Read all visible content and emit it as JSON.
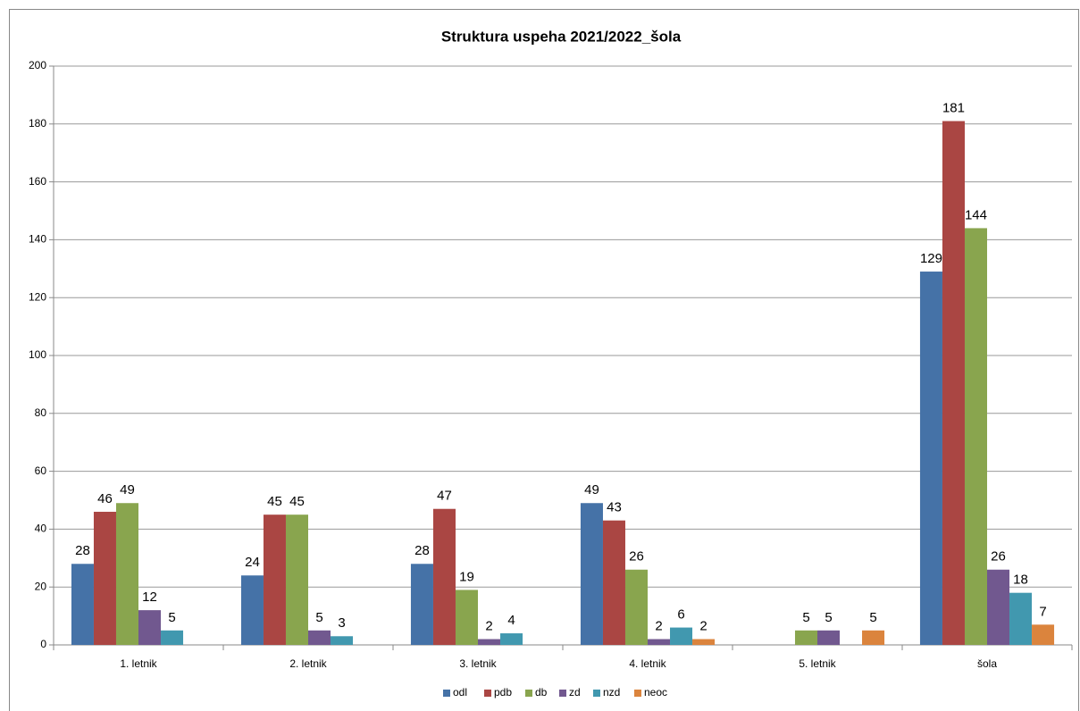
{
  "chart_data": {
    "type": "bar",
    "title": "Struktura uspeha 2021/2022_šola",
    "categories": [
      "1. letnik",
      "2. letnik",
      "3. letnik",
      "4. letnik",
      "5. letnik",
      "šola"
    ],
    "series": [
      {
        "name": "odl",
        "color": "#4572a7",
        "values": [
          28,
          24,
          28,
          49,
          null,
          129
        ]
      },
      {
        "name": "pdb",
        "color": "#aa4643",
        "values": [
          46,
          45,
          47,
          43,
          null,
          181
        ]
      },
      {
        "name": "db",
        "color": "#89a54e",
        "values": [
          49,
          45,
          19,
          26,
          5,
          144
        ]
      },
      {
        "name": "zd",
        "color": "#71588f",
        "values": [
          12,
          5,
          2,
          2,
          5,
          26
        ]
      },
      {
        "name": "nzd",
        "color": "#4198af",
        "values": [
          5,
          3,
          4,
          6,
          null,
          18
        ]
      },
      {
        "name": "neoc",
        "color": "#db843d",
        "values": [
          null,
          null,
          null,
          2,
          5,
          7
        ]
      }
    ],
    "ylim": [
      0,
      200
    ],
    "yticks": [
      0,
      20,
      40,
      60,
      80,
      100,
      120,
      140,
      160,
      180,
      200
    ],
    "grid": true,
    "legend": "bottom"
  }
}
